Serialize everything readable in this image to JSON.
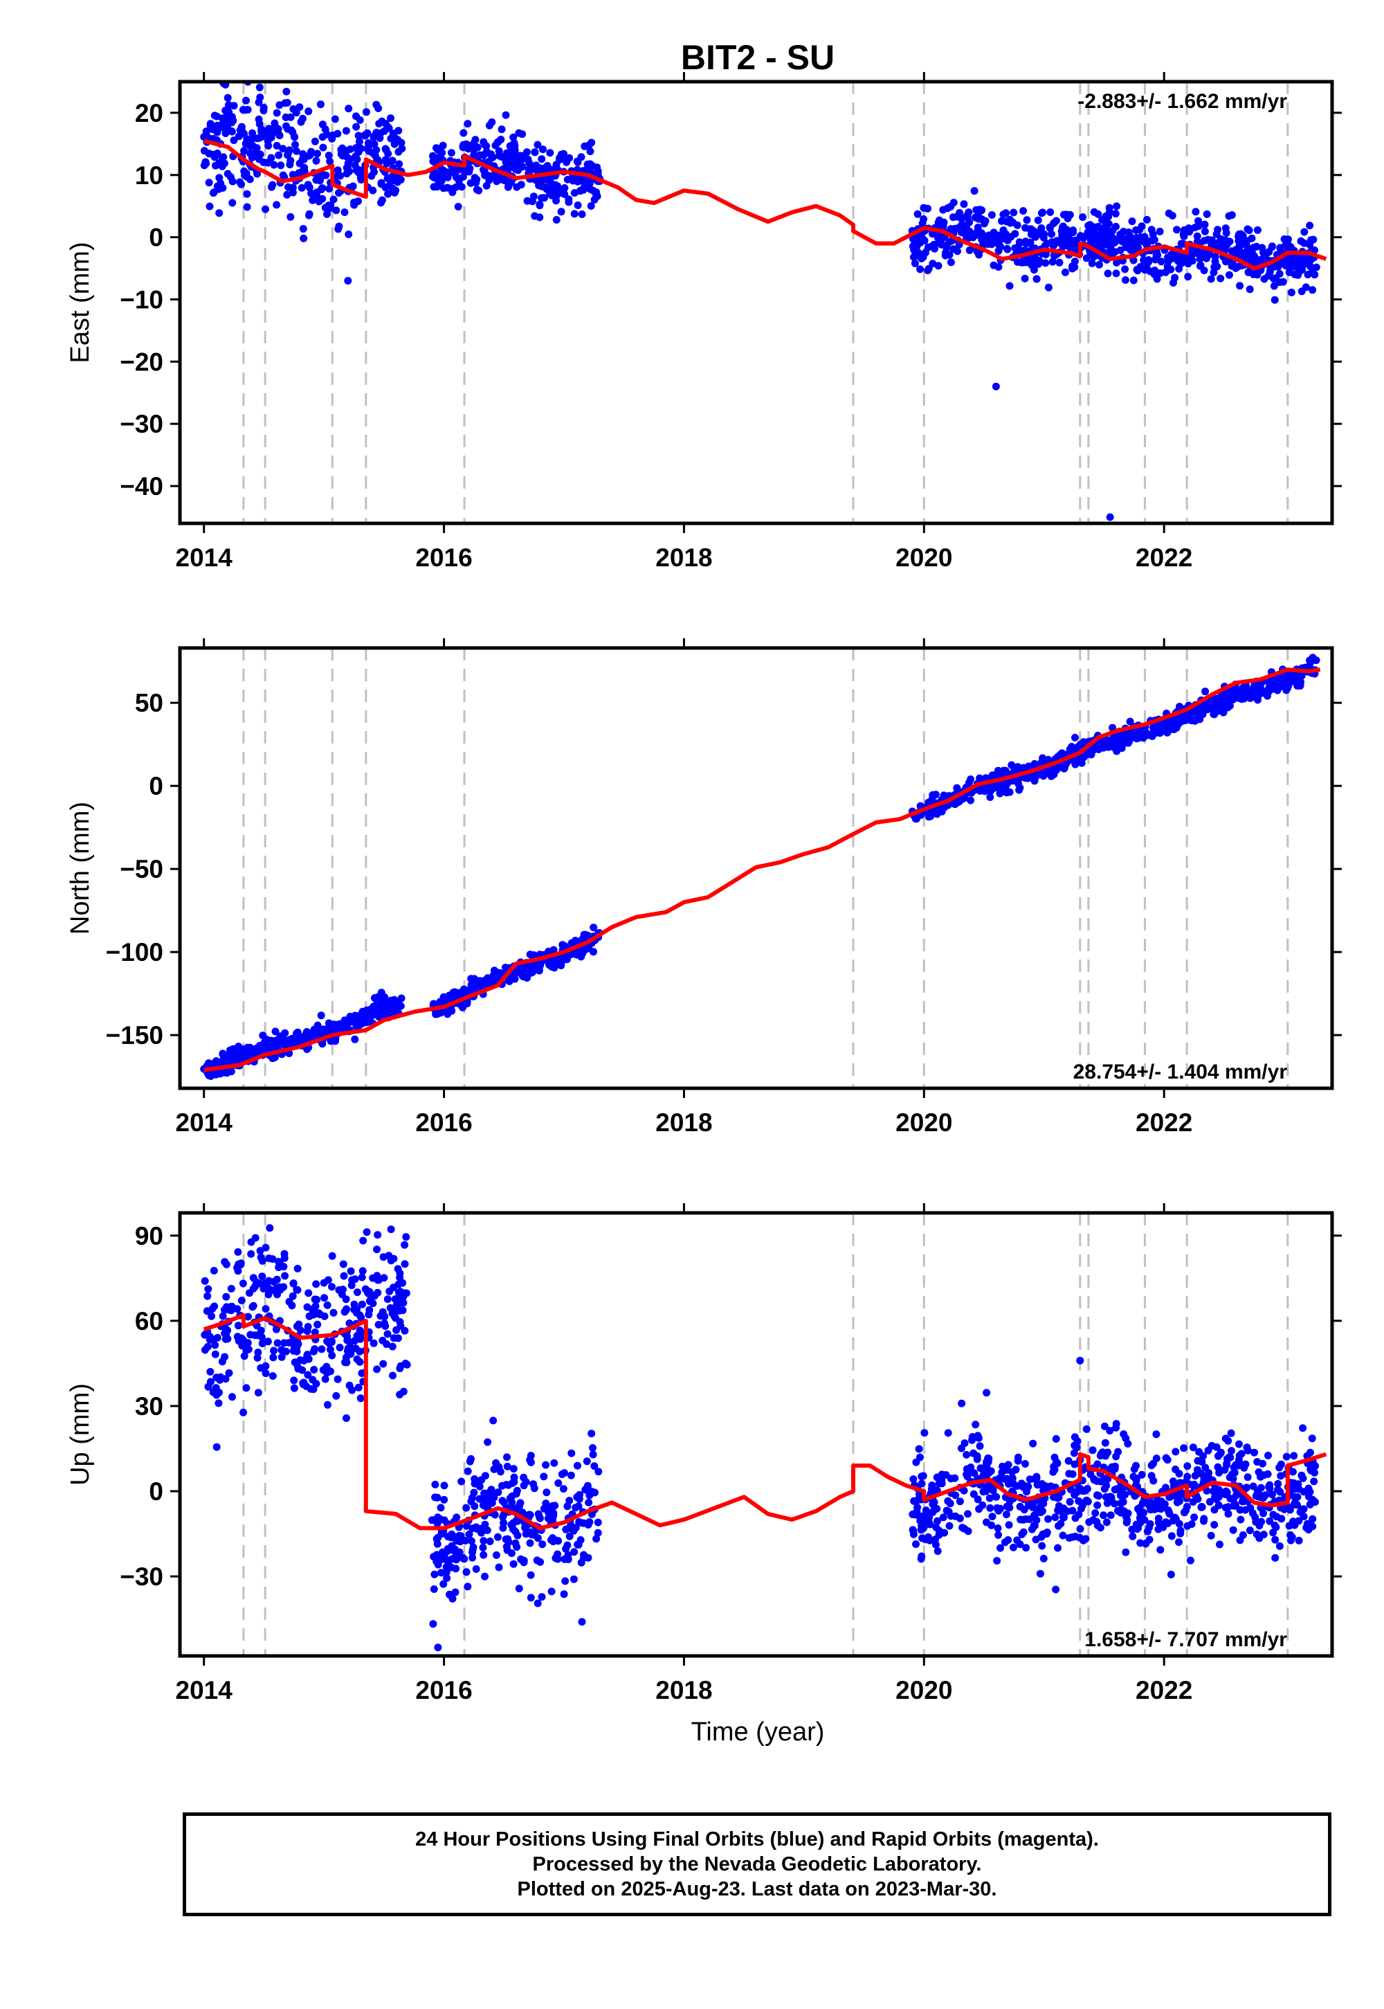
{
  "title": "BIT2 - SU",
  "xlabel": "Time (year)",
  "colors": {
    "points": "#0000ff",
    "model": "#ff0000",
    "steps": "#c0c0c0",
    "frame": "#000000"
  },
  "footer": {
    "line1": "24 Hour Positions Using Final Orbits (blue) and Rapid Orbits (magenta).",
    "line2": "Processed by the Nevada Geodetic Laboratory.",
    "line3": "Plotted on 2025-Aug-23. Last data on 2023-Mar-30."
  },
  "chart_data": [
    {
      "type": "scatter",
      "ylabel": "East (mm)",
      "rate": "-2.883+/- 1.662 mm/yr",
      "rate_position": "top-right",
      "xlim": [
        2013.8,
        2023.4
      ],
      "ylim": [
        -46,
        25
      ],
      "xticks": [
        2014,
        2016,
        2018,
        2020,
        2022
      ],
      "yticks": [
        20,
        10,
        0,
        -10,
        -20,
        -30,
        -40
      ],
      "step_lines": [
        2014.33,
        2014.51,
        2015.07,
        2015.35,
        2016.17,
        2019.41,
        2020.0,
        2021.3,
        2021.37,
        2021.84,
        2022.19,
        2023.03
      ],
      "data_segments": [
        {
          "x": [
            2014.0,
            2015.65
          ],
          "trend": [
            15.0,
            10.0
          ],
          "scatter": 4.5
        },
        {
          "x": [
            2015.9,
            2017.3
          ],
          "trend": [
            12.5,
            9.5
          ],
          "scatter": 2.3
        },
        {
          "x": [
            2019.9,
            2023.27
          ],
          "trend": [
            0.5,
            -3.5
          ],
          "scatter": 2.3
        }
      ],
      "outliers": [
        [
          2020.6,
          -24
        ],
        [
          2021.55,
          -45
        ],
        [
          2015.2,
          -7
        ]
      ],
      "model_line": [
        [
          2014.0,
          15.5
        ],
        [
          2014.2,
          14.5
        ],
        [
          2014.33,
          12.5
        ],
        [
          2014.45,
          11
        ],
        [
          2014.51,
          10.5
        ],
        [
          2014.65,
          9
        ],
        [
          2014.8,
          9.5
        ],
        [
          2015.07,
          11.5
        ],
        [
          2015.07,
          8.5
        ],
        [
          2015.2,
          7.5
        ],
        [
          2015.35,
          6.5
        ],
        [
          2015.35,
          12.5
        ],
        [
          2015.5,
          11
        ],
        [
          2015.7,
          10
        ],
        [
          2015.85,
          10.5
        ],
        [
          2016.0,
          12
        ],
        [
          2016.17,
          11.5
        ],
        [
          2016.17,
          13
        ],
        [
          2016.4,
          11
        ],
        [
          2016.6,
          9.5
        ],
        [
          2016.8,
          10
        ],
        [
          2017.0,
          10.5
        ],
        [
          2017.2,
          10
        ],
        [
          2017.45,
          8
        ],
        [
          2017.6,
          6
        ],
        [
          2017.75,
          5.5
        ],
        [
          2018.0,
          7.5
        ],
        [
          2018.2,
          7
        ],
        [
          2018.45,
          4.5
        ],
        [
          2018.7,
          2.5
        ],
        [
          2018.9,
          4
        ],
        [
          2019.1,
          5
        ],
        [
          2019.3,
          3.5
        ],
        [
          2019.41,
          2
        ],
        [
          2019.41,
          1
        ],
        [
          2019.6,
          -1
        ],
        [
          2019.75,
          -1
        ],
        [
          2019.9,
          0.5
        ],
        [
          2020.0,
          1.5
        ],
        [
          2020.15,
          1
        ],
        [
          2020.3,
          -0.5
        ],
        [
          2020.5,
          -2
        ],
        [
          2020.65,
          -3.5
        ],
        [
          2020.8,
          -3
        ],
        [
          2021.0,
          -2
        ],
        [
          2021.2,
          -2.5
        ],
        [
          2021.3,
          -3
        ],
        [
          2021.3,
          -1
        ],
        [
          2021.37,
          -1.5
        ],
        [
          2021.55,
          -3.5
        ],
        [
          2021.75,
          -3
        ],
        [
          2021.84,
          -2
        ],
        [
          2022.0,
          -1.5
        ],
        [
          2022.19,
          -2.5
        ],
        [
          2022.19,
          -1
        ],
        [
          2022.4,
          -2
        ],
        [
          2022.6,
          -3.5
        ],
        [
          2022.75,
          -5
        ],
        [
          2022.9,
          -4
        ],
        [
          2023.03,
          -2.5
        ],
        [
          2023.2,
          -2.5
        ],
        [
          2023.35,
          -3.5
        ]
      ]
    },
    {
      "type": "scatter",
      "ylabel": "North (mm)",
      "rate": "28.754+/- 1.404 mm/yr",
      "rate_position": "bottom-right",
      "xlim": [
        2013.8,
        2023.4
      ],
      "ylim": [
        -182,
        83
      ],
      "xticks": [
        2014,
        2016,
        2018,
        2020,
        2022
      ],
      "yticks": [
        50,
        0,
        -50,
        -100,
        -150
      ],
      "step_lines": [
        2014.33,
        2014.51,
        2015.07,
        2015.35,
        2016.17,
        2019.41,
        2020.0,
        2021.3,
        2021.37,
        2021.84,
        2022.19,
        2023.03
      ],
      "data_segments": [
        {
          "x": [
            2014.0,
            2015.65
          ],
          "trend": [
            -171,
            -132
          ],
          "scatter": 3.2
        },
        {
          "x": [
            2015.9,
            2017.3
          ],
          "trend": [
            -134,
            -91
          ],
          "scatter": 3.0
        },
        {
          "x": [
            2019.9,
            2023.27
          ],
          "trend": [
            -17,
            71
          ],
          "scatter": 3.0
        }
      ],
      "outliers": [],
      "model_line": [
        [
          2014.0,
          -171
        ],
        [
          2014.3,
          -168
        ],
        [
          2014.5,
          -162
        ],
        [
          2014.8,
          -157
        ],
        [
          2015.07,
          -150
        ],
        [
          2015.35,
          -147
        ],
        [
          2015.5,
          -141
        ],
        [
          2015.75,
          -136
        ],
        [
          2016.0,
          -133
        ],
        [
          2016.2,
          -127
        ],
        [
          2016.45,
          -120
        ],
        [
          2016.6,
          -107
        ],
        [
          2016.8,
          -104
        ],
        [
          2017.0,
          -100
        ],
        [
          2017.2,
          -94
        ],
        [
          2017.4,
          -85
        ],
        [
          2017.6,
          -79
        ],
        [
          2017.85,
          -76
        ],
        [
          2018.0,
          -70
        ],
        [
          2018.2,
          -67
        ],
        [
          2018.4,
          -58
        ],
        [
          2018.6,
          -49
        ],
        [
          2018.8,
          -46
        ],
        [
          2019.0,
          -41
        ],
        [
          2019.2,
          -37
        ],
        [
          2019.41,
          -29
        ],
        [
          2019.6,
          -22
        ],
        [
          2019.8,
          -20
        ],
        [
          2020.0,
          -14
        ],
        [
          2020.2,
          -9
        ],
        [
          2020.45,
          1
        ],
        [
          2020.65,
          4
        ],
        [
          2020.9,
          9
        ],
        [
          2021.1,
          14
        ],
        [
          2021.3,
          20
        ],
        [
          2021.45,
          29
        ],
        [
          2021.6,
          33
        ],
        [
          2021.84,
          37
        ],
        [
          2022.0,
          41
        ],
        [
          2022.19,
          46
        ],
        [
          2022.4,
          55
        ],
        [
          2022.6,
          62
        ],
        [
          2022.8,
          64
        ],
        [
          2023.03,
          70
        ],
        [
          2023.2,
          69
        ],
        [
          2023.3,
          70
        ]
      ]
    },
    {
      "type": "scatter",
      "ylabel": "Up (mm)",
      "rate": "1.658+/- 7.707 mm/yr",
      "rate_position": "bottom-right",
      "xlim": [
        2013.8,
        2023.4
      ],
      "ylim": [
        -58,
        98
      ],
      "xticks": [
        2014,
        2016,
        2018,
        2020,
        2022
      ],
      "yticks": [
        90,
        60,
        30,
        0,
        -30
      ],
      "step_lines": [
        2014.33,
        2014.51,
        2016.17,
        2019.41,
        2020.0,
        2021.3,
        2021.37,
        2021.84,
        2022.19,
        2023.03
      ],
      "data_segments": [
        {
          "x": [
            2014.0,
            2015.7
          ],
          "trend": [
            57,
            60
          ],
          "scatter": 13
        },
        {
          "x": [
            2015.9,
            2017.3
          ],
          "trend": [
            -13,
            -8
          ],
          "scatter": 11
        },
        {
          "x": [
            2019.9,
            2023.27
          ],
          "trend": [
            -2,
            0
          ],
          "scatter": 9
        }
      ],
      "outliers": [
        [
          2015.95,
          -55
        ],
        [
          2017.15,
          -46
        ],
        [
          2021.3,
          46
        ]
      ],
      "model_line": [
        [
          2014.0,
          57
        ],
        [
          2014.15,
          59
        ],
        [
          2014.33,
          62
        ],
        [
          2014.33,
          58
        ],
        [
          2014.51,
          61
        ],
        [
          2014.65,
          58
        ],
        [
          2014.8,
          54
        ],
        [
          2015.07,
          55
        ],
        [
          2015.2,
          57
        ],
        [
          2015.35,
          60
        ],
        [
          2015.35,
          -7
        ],
        [
          2015.6,
          -8
        ],
        [
          2015.8,
          -13
        ],
        [
          2016.0,
          -13
        ],
        [
          2016.2,
          -10
        ],
        [
          2016.45,
          -6
        ],
        [
          2016.6,
          -8
        ],
        [
          2016.8,
          -13
        ],
        [
          2017.0,
          -11
        ],
        [
          2017.2,
          -7
        ],
        [
          2017.4,
          -4
        ],
        [
          2017.6,
          -8
        ],
        [
          2017.8,
          -12
        ],
        [
          2018.0,
          -10
        ],
        [
          2018.25,
          -6
        ],
        [
          2018.5,
          -2
        ],
        [
          2018.7,
          -8
        ],
        [
          2018.9,
          -10
        ],
        [
          2019.1,
          -7
        ],
        [
          2019.3,
          -2
        ],
        [
          2019.41,
          0
        ],
        [
          2019.41,
          9
        ],
        [
          2019.55,
          9
        ],
        [
          2019.7,
          5
        ],
        [
          2019.85,
          2
        ],
        [
          2020.0,
          0
        ],
        [
          2020.0,
          -3
        ],
        [
          2020.2,
          0
        ],
        [
          2020.4,
          3
        ],
        [
          2020.55,
          4
        ],
        [
          2020.7,
          -1
        ],
        [
          2020.85,
          -3
        ],
        [
          2021.1,
          0
        ],
        [
          2021.3,
          4
        ],
        [
          2021.3,
          13
        ],
        [
          2021.37,
          12
        ],
        [
          2021.37,
          8
        ],
        [
          2021.5,
          7
        ],
        [
          2021.7,
          2
        ],
        [
          2021.84,
          -2
        ],
        [
          2022.0,
          -1
        ],
        [
          2022.19,
          2
        ],
        [
          2022.19,
          -2
        ],
        [
          2022.4,
          3
        ],
        [
          2022.6,
          2
        ],
        [
          2022.75,
          -4
        ],
        [
          2022.9,
          -5
        ],
        [
          2023.03,
          -4
        ],
        [
          2023.03,
          9
        ],
        [
          2023.2,
          11
        ],
        [
          2023.35,
          13
        ]
      ]
    }
  ]
}
